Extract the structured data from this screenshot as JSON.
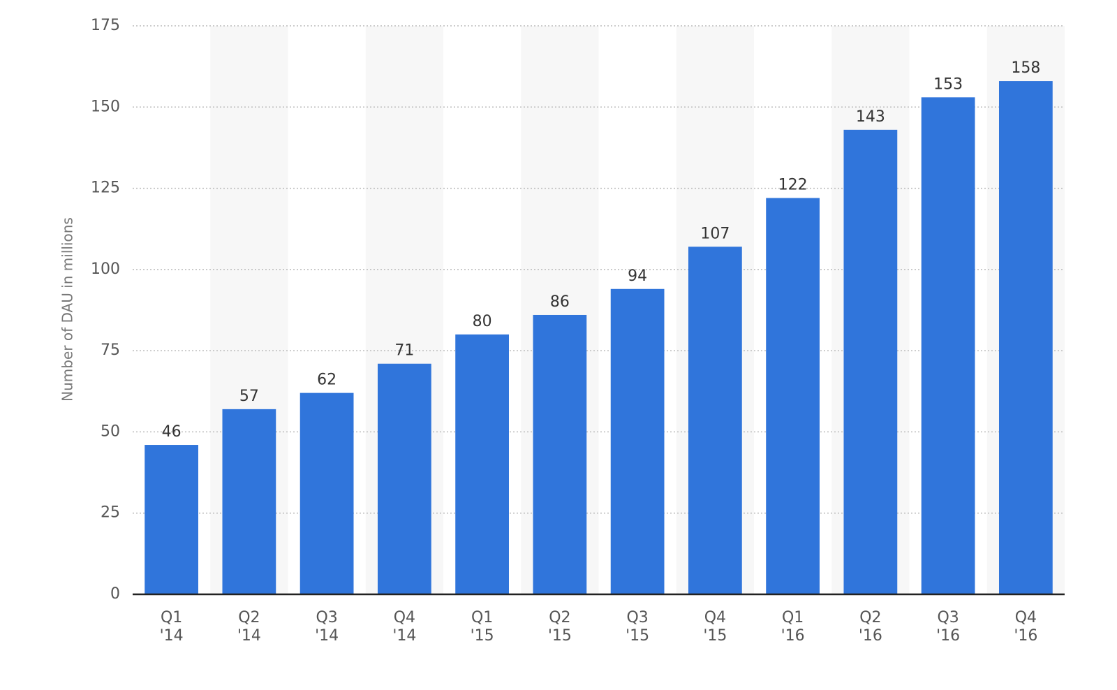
{
  "chart_data": {
    "type": "bar",
    "y_label": "Number of DAU in millions",
    "categories": [
      "Q1 '14",
      "Q2 '14",
      "Q3 '14",
      "Q4 '14",
      "Q1 '15",
      "Q2 '15",
      "Q3 '15",
      "Q4 '15",
      "Q1 '16",
      "Q2 '16",
      "Q3 '16",
      "Q4 '16"
    ],
    "values": [
      46,
      57,
      62,
      71,
      80,
      86,
      94,
      107,
      122,
      143,
      153,
      158
    ],
    "color": "#3075db",
    "ylim": [
      0,
      175
    ],
    "yticks": [
      0,
      25,
      50,
      75,
      100,
      125,
      150,
      175
    ],
    "grid": true
  }
}
